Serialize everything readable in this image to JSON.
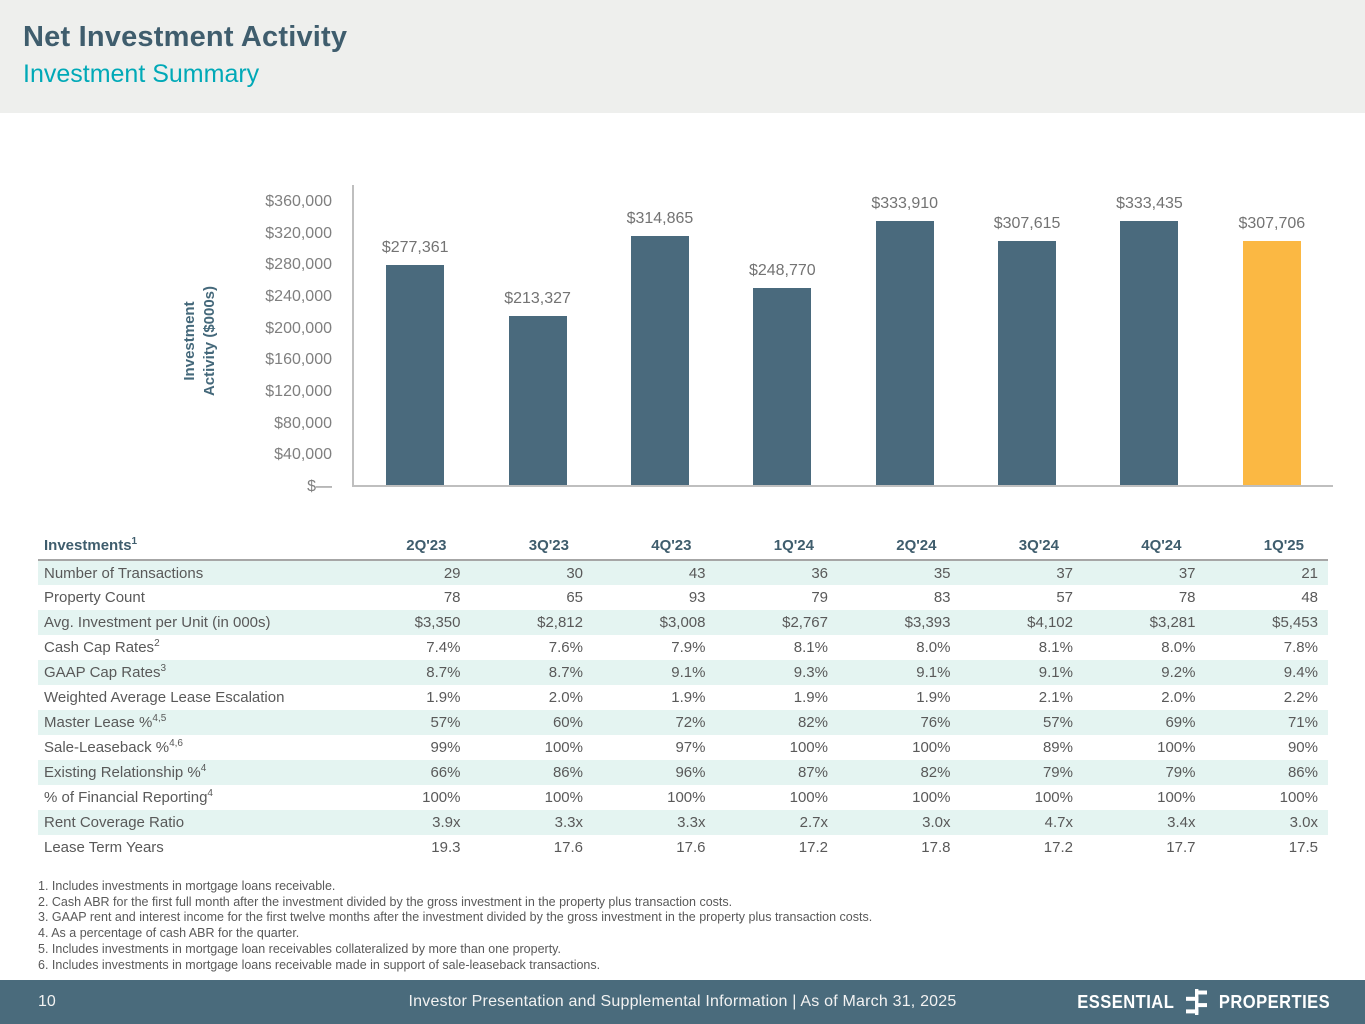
{
  "header": {
    "title": "Net Investment Activity",
    "subtitle": "Investment Summary"
  },
  "chart_data": {
    "type": "bar",
    "categories": [
      "2Q'23",
      "3Q'23",
      "4Q'23",
      "1Q'24",
      "2Q'24",
      "3Q'24",
      "4Q'24",
      "1Q'25"
    ],
    "values": [
      277361,
      213327,
      314865,
      248770,
      333910,
      307615,
      333435,
      307706
    ],
    "value_labels": [
      "$277,361",
      "$213,327",
      "$314,865",
      "$248,770",
      "$333,910",
      "$307,615",
      "$333,435",
      "$307,706"
    ],
    "title": "",
    "xlabel": "",
    "ylabel": "Investment Activity ($000s)",
    "ylabel_line1": "Investment",
    "ylabel_line2": "Activity ($000s)",
    "ylim": [
      0,
      380000
    ],
    "grid": false,
    "legend": "none",
    "y_ticks": [
      {
        "value": 360000,
        "label": "$360,000"
      },
      {
        "value": 320000,
        "label": "$320,000"
      },
      {
        "value": 280000,
        "label": "$280,000"
      },
      {
        "value": 240000,
        "label": "$240,000"
      },
      {
        "value": 200000,
        "label": "$200,000"
      },
      {
        "value": 160000,
        "label": "$160,000"
      },
      {
        "value": 120000,
        "label": "$120,000"
      },
      {
        "value": 80000,
        "label": "$80,000"
      },
      {
        "value": 40000,
        "label": "$40,000"
      },
      {
        "value": 0,
        "label": "$—"
      }
    ],
    "bar_color": "#4A6A7D",
    "highlight_color": "#FBB843",
    "highlight_index": 7
  },
  "table": {
    "title": "Investments",
    "title_sup": "1",
    "columns": [
      "2Q'23",
      "3Q'23",
      "4Q'23",
      "1Q'24",
      "2Q'24",
      "3Q'24",
      "4Q'24",
      "1Q'25"
    ],
    "rows": [
      {
        "label": "Number of Transactions",
        "sup": "",
        "values": [
          "29",
          "30",
          "43",
          "36",
          "35",
          "37",
          "37",
          "21"
        ]
      },
      {
        "label": "Property Count",
        "sup": "",
        "values": [
          "78",
          "65",
          "93",
          "79",
          "83",
          "57",
          "78",
          "48"
        ]
      },
      {
        "label": "Avg. Investment per Unit (in 000s)",
        "sup": "",
        "values": [
          "$3,350",
          "$2,812",
          "$3,008",
          "$2,767",
          "$3,393",
          "$4,102",
          "$3,281",
          "$5,453"
        ]
      },
      {
        "label": "Cash Cap Rates",
        "sup": "2",
        "values": [
          "7.4%",
          "7.6%",
          "7.9%",
          "8.1%",
          "8.0%",
          "8.1%",
          "8.0%",
          "7.8%"
        ]
      },
      {
        "label": "GAAP Cap Rates",
        "sup": "3",
        "values": [
          "8.7%",
          "8.7%",
          "9.1%",
          "9.3%",
          "9.1%",
          "9.1%",
          "9.2%",
          "9.4%"
        ]
      },
      {
        "label": "Weighted Average Lease Escalation",
        "sup": "",
        "values": [
          "1.9%",
          "2.0%",
          "1.9%",
          "1.9%",
          "1.9%",
          "2.1%",
          "2.0%",
          "2.2%"
        ]
      },
      {
        "label": "Master Lease %",
        "sup": "4,5",
        "values": [
          "57%",
          "60%",
          "72%",
          "82%",
          "76%",
          "57%",
          "69%",
          "71%"
        ]
      },
      {
        "label": "Sale-Leaseback %",
        "sup": "4,6",
        "values": [
          "99%",
          "100%",
          "97%",
          "100%",
          "100%",
          "89%",
          "100%",
          "90%"
        ]
      },
      {
        "label": "Existing Relationship %",
        "sup": "4",
        "values": [
          "66%",
          "86%",
          "96%",
          "87%",
          "82%",
          "79%",
          "79%",
          "86%"
        ]
      },
      {
        "label": "% of Financial Reporting",
        "sup": "4",
        "values": [
          "100%",
          "100%",
          "100%",
          "100%",
          "100%",
          "100%",
          "100%",
          "100%"
        ]
      },
      {
        "label": "Rent Coverage Ratio",
        "sup": "",
        "values": [
          "3.9x",
          "3.3x",
          "3.3x",
          "2.7x",
          "3.0x",
          "4.7x",
          "3.4x",
          "3.0x"
        ]
      },
      {
        "label": "Lease Term Years",
        "sup": "",
        "values": [
          "19.3",
          "17.6",
          "17.6",
          "17.2",
          "17.8",
          "17.2",
          "17.7",
          "17.5"
        ]
      }
    ]
  },
  "footnotes": [
    "1. Includes investments in mortgage loans receivable.",
    "2. Cash ABR for the first full month after the investment divided by the gross investment in the property plus transaction costs.",
    "3. GAAP rent and interest income for the first twelve months after the investment divided by the gross investment in the property plus transaction costs.",
    "4. As a percentage of cash ABR for the quarter.",
    "5. Includes investments in mortgage loan receivables collateralized by more than one property.",
    "6. Includes investments in mortgage loans receivable made in support of sale-leaseback transactions."
  ],
  "footer": {
    "page_number": "10",
    "text": "Investor Presentation and Supplemental Information |  As of March 31, 2025",
    "logo_word_left": "ESSENTIAL",
    "logo_word_right": "PROPERTIES"
  }
}
